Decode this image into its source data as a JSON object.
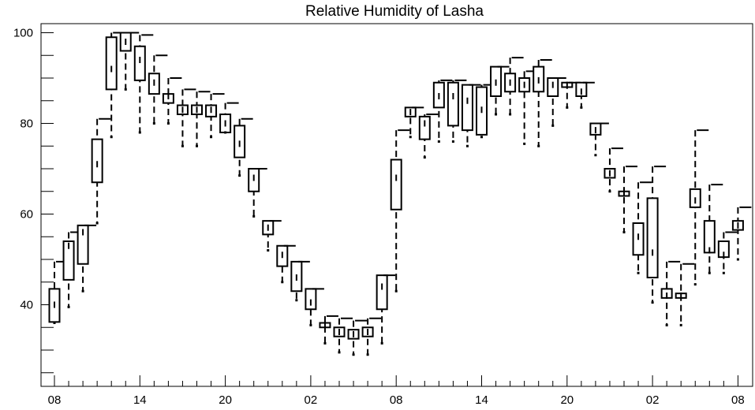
{
  "chart_data": {
    "type": "boxplot",
    "title": "Relative Humidity of Lasha",
    "xlabel": "",
    "ylabel": "",
    "ylim": [
      22,
      102
    ],
    "y_ticks": [
      40,
      60,
      80,
      100
    ],
    "x_tick_labels": [
      "08",
      "14",
      "20",
      "02",
      "08",
      "14",
      "20",
      "02",
      "08"
    ],
    "x_tick_hours": [
      0,
      6,
      12,
      18,
      24,
      30,
      36,
      42,
      48
    ],
    "grid": false,
    "boxes": [
      {
        "hour": 0,
        "low": 36,
        "q1": 36.2,
        "median": 40,
        "q3": 43.5,
        "high": 49.5
      },
      {
        "hour": 1,
        "low": 39.5,
        "q1": 45.5,
        "median": 53,
        "q3": 54,
        "high": 56
      },
      {
        "hour": 2,
        "low": 43,
        "q1": 49,
        "median": 56,
        "q3": 57.5,
        "high": 57.5
      },
      {
        "hour": 3,
        "low": 58,
        "q1": 67,
        "median": 71,
        "q3": 76.5,
        "high": 81
      },
      {
        "hour": 4,
        "low": 77,
        "q1": 87.5,
        "median": 92,
        "q3": 99,
        "high": 100
      },
      {
        "hour": 5,
        "low": 87.5,
        "q1": 96,
        "median": 98,
        "q3": 100,
        "high": 100
      },
      {
        "hour": 6,
        "low": 78,
        "q1": 89.5,
        "median": 94,
        "q3": 97,
        "high": 99.5
      },
      {
        "hour": 7,
        "low": 80,
        "q1": 86.5,
        "median": 89,
        "q3": 91,
        "high": 95
      },
      {
        "hour": 8,
        "low": 80,
        "q1": 84.5,
        "median": 86,
        "q3": 86.5,
        "high": 90
      },
      {
        "hour": 9,
        "low": 75,
        "q1": 82,
        "median": 83,
        "q3": 84,
        "high": 87.5
      },
      {
        "hour": 10,
        "low": 75,
        "q1": 82,
        "median": 83,
        "q3": 84,
        "high": 87
      },
      {
        "hour": 11,
        "low": 77,
        "q1": 81.5,
        "median": 83,
        "q3": 84,
        "high": 86.5
      },
      {
        "hour": 12,
        "low": 78,
        "q1": 78,
        "median": 80,
        "q3": 82,
        "high": 84.5
      },
      {
        "hour": 13,
        "low": 68.5,
        "q1": 72.5,
        "median": 75.5,
        "q3": 79.5,
        "high": 81
      },
      {
        "hour": 14,
        "low": 59.5,
        "q1": 65,
        "median": 68,
        "q3": 70,
        "high": 70
      },
      {
        "hour": 15,
        "low": 52,
        "q1": 55.5,
        "median": 57,
        "q3": 58.5,
        "high": 58.5
      },
      {
        "hour": 16,
        "low": 45,
        "q1": 48.5,
        "median": 51,
        "q3": 53,
        "high": 53
      },
      {
        "hour": 17,
        "low": 41,
        "q1": 43,
        "median": 46,
        "q3": 49.5,
        "high": 49.5
      },
      {
        "hour": 18,
        "low": 35.5,
        "q1": 39,
        "median": 40.5,
        "q3": 43.5,
        "high": 43.5
      },
      {
        "hour": 19,
        "low": 31.5,
        "q1": 35,
        "median": 35.5,
        "q3": 36,
        "high": 37.5
      },
      {
        "hour": 20,
        "low": 29.5,
        "q1": 33,
        "median": 34,
        "q3": 35,
        "high": 37
      },
      {
        "hour": 21,
        "low": 29,
        "q1": 32.5,
        "median": 33.5,
        "q3": 34.5,
        "high": 36.5
      },
      {
        "hour": 22,
        "low": 29,
        "q1": 33,
        "median": 34,
        "q3": 35,
        "high": 37
      },
      {
        "hour": 23,
        "low": 31.5,
        "q1": 39,
        "median": 44,
        "q3": 46.5,
        "high": 46.5
      },
      {
        "hour": 24,
        "low": 43,
        "q1": 61,
        "median": 68,
        "q3": 72,
        "high": 78.5
      },
      {
        "hour": 25,
        "low": 77,
        "q1": 81.5,
        "median": 82.5,
        "q3": 83.5,
        "high": 83.5
      },
      {
        "hour": 26,
        "low": 72.5,
        "q1": 76.5,
        "median": 80,
        "q3": 81.5,
        "high": 82
      },
      {
        "hour": 27,
        "low": 76,
        "q1": 83.5,
        "median": 86,
        "q3": 89,
        "high": 89.5
      },
      {
        "hour": 28,
        "low": 76,
        "q1": 79.5,
        "median": 86,
        "q3": 89,
        "high": 89.5
      },
      {
        "hour": 29,
        "low": 75,
        "q1": 78.5,
        "median": 85,
        "q3": 88.5,
        "high": 88.5
      },
      {
        "hour": 30,
        "low": 77,
        "q1": 77.5,
        "median": 83,
        "q3": 88,
        "high": 88.5
      },
      {
        "hour": 31,
        "low": 82,
        "q1": 86,
        "median": 89,
        "q3": 92.5,
        "high": 92.5
      },
      {
        "hour": 32,
        "low": 82,
        "q1": 87,
        "median": 89,
        "q3": 91,
        "high": 94.5
      },
      {
        "hour": 33,
        "low": 75.5,
        "q1": 87,
        "median": 88.5,
        "q3": 90,
        "high": 91.5
      },
      {
        "hour": 34,
        "low": 75,
        "q1": 87,
        "median": 89.5,
        "q3": 92.5,
        "high": 94
      },
      {
        "hour": 35,
        "low": 79.5,
        "q1": 86,
        "median": 88.5,
        "q3": 90,
        "high": 90
      },
      {
        "hour": 36,
        "low": 83.5,
        "q1": 88,
        "median": 88.5,
        "q3": 89,
        "high": 89
      },
      {
        "hour": 37,
        "low": 83.5,
        "q1": 86,
        "median": 87,
        "q3": 89,
        "high": 89
      },
      {
        "hour": 38,
        "low": 73,
        "q1": 77.5,
        "median": 78.5,
        "q3": 80,
        "high": 80
      },
      {
        "hour": 39,
        "low": 65,
        "q1": 68,
        "median": 69,
        "q3": 70,
        "high": 74.5
      },
      {
        "hour": 40,
        "low": 56,
        "q1": 64,
        "median": 64.5,
        "q3": 65,
        "high": 70.5
      },
      {
        "hour": 41,
        "low": 47,
        "q1": 51,
        "median": 55,
        "q3": 58,
        "high": 67
      },
      {
        "hour": 42,
        "low": 40.5,
        "q1": 46,
        "median": 51.5,
        "q3": 63.5,
        "high": 70.5
      },
      {
        "hour": 43,
        "low": 35.5,
        "q1": 41.5,
        "median": 42,
        "q3": 43.5,
        "high": 49.5
      },
      {
        "hour": 44,
        "low": 35.5,
        "q1": 41.5,
        "median": 42,
        "q3": 42.5,
        "high": 49
      },
      {
        "hour": 45,
        "low": 44.5,
        "q1": 61.5,
        "median": 63,
        "q3": 65.5,
        "high": 78.5
      },
      {
        "hour": 46,
        "low": 47,
        "q1": 51.5,
        "median": 52,
        "q3": 58.5,
        "high": 66.5
      },
      {
        "hour": 47,
        "low": 47,
        "q1": 50.5,
        "median": 51,
        "q3": 54,
        "high": 56
      },
      {
        "hour": 48,
        "low": 50,
        "q1": 56.5,
        "median": 57.5,
        "q3": 58.5,
        "high": 61.5
      }
    ]
  }
}
